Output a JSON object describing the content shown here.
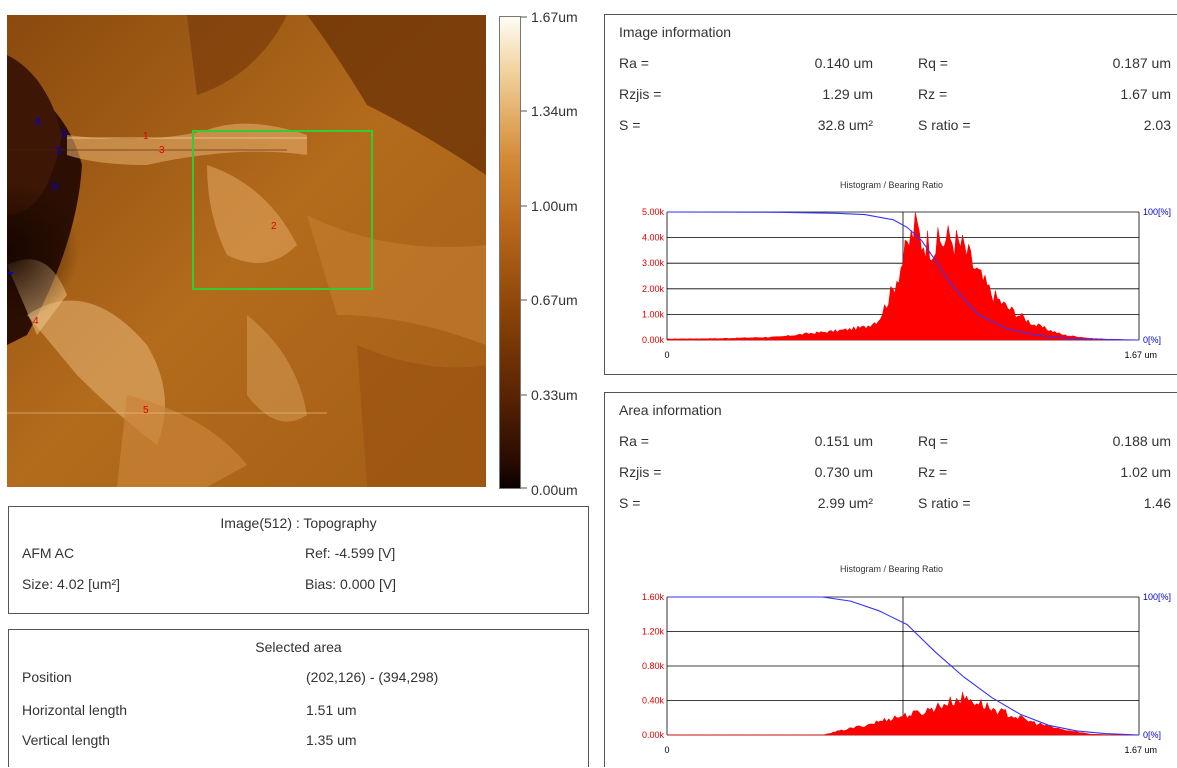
{
  "afm_image": {
    "markers": [
      {
        "label": "1",
        "color": "#e00000"
      },
      {
        "label": "2",
        "color": "#e00000"
      },
      {
        "label": "3",
        "color": "#e00000"
      },
      {
        "label": "4",
        "color": "#e00000"
      },
      {
        "label": "5",
        "color": "#e00000"
      },
      {
        "label": "8",
        "color": "#0000e0"
      },
      {
        "label": "9",
        "color": "#0000e0"
      },
      {
        "label": "5",
        "color": "#0000e0"
      },
      {
        "label": "8",
        "color": "#0000e0"
      }
    ],
    "selection_color": "#33cc33"
  },
  "colorbar": {
    "labels": [
      "1.67um",
      "1.34um",
      "1.00um",
      "0.67um",
      "0.33um",
      "0.00um"
    ]
  },
  "image_panel": {
    "title": "Image(512) : Topography",
    "mode": "AFM AC",
    "ref": "Ref: -4.599 [V]",
    "size": "Size: 4.02 [um²]",
    "bias": "Bias: 0.000 [V]"
  },
  "selected_area": {
    "title": "Selected area",
    "rows": [
      {
        "label": "Position",
        "value": "(202,126) - (394,298)"
      },
      {
        "label": "Horizontal length",
        "value": "1.51 um"
      },
      {
        "label": "Vertical length",
        "value": "1.35 um"
      }
    ]
  },
  "image_info": {
    "title": "Image information",
    "rows": [
      {
        "l1": "Ra =",
        "v1": "0.140 um",
        "l2": "Rq =",
        "v2": "0.187 um"
      },
      {
        "l1": "Rzjis =",
        "v1": "1.29 um",
        "l2": "Rz =",
        "v2": "1.67 um"
      },
      {
        "l1": "S =",
        "v1": "32.8 um²",
        "l2": "S ratio =",
        "v2": "2.03"
      }
    ],
    "histogram_title": "Histogram / Bearing Ratio",
    "y_ticks": [
      "5.00k",
      "4.00k",
      "3.00k",
      "2.00k",
      "1.00k",
      "0.00k"
    ],
    "x_min": "0",
    "x_max": "1.67 um",
    "right_top": "100[%]",
    "right_bottom": "0[%]"
  },
  "area_info": {
    "title": "Area information",
    "rows": [
      {
        "l1": "Ra =",
        "v1": "0.151 um",
        "l2": "Rq =",
        "v2": "0.188 um"
      },
      {
        "l1": "Rzjis =",
        "v1": "0.730 um",
        "l2": "Rz =",
        "v2": "1.02 um"
      },
      {
        "l1": "S =",
        "v1": "2.99 um²",
        "l2": "S ratio =",
        "v2": "1.46"
      }
    ],
    "histogram_title": "Histogram / Bearing Ratio",
    "y_ticks": [
      "1.60k",
      "1.20k",
      "0.80k",
      "0.40k",
      "0.00k"
    ],
    "x_min": "0",
    "x_max": "1.67 um",
    "right_top": "100[%]",
    "right_bottom": "0[%]"
  },
  "chart_data": [
    {
      "type": "area",
      "title": "Histogram / Bearing Ratio",
      "xlim": [
        0,
        1.67
      ],
      "ylim": [
        0,
        5000
      ],
      "series": [
        {
          "values_x": [
            0,
            0.2,
            0.4,
            0.5,
            0.6,
            0.7,
            0.75,
            0.8,
            0.85,
            0.88,
            0.9,
            0.95,
            1.0,
            1.05,
            1.1,
            1.15,
            1.2,
            1.3,
            1.4,
            1.5,
            1.6,
            1.67
          ],
          "values": [
            40,
            60,
            120,
            250,
            350,
            500,
            800,
            2000,
            3600,
            4500,
            3900,
            3700,
            4000,
            3600,
            2600,
            1800,
            1300,
            600,
            200,
            60,
            20,
            0
          ]
        },
        {
          "values_x": [
            0,
            0.4,
            0.6,
            0.7,
            0.8,
            0.85,
            0.9,
            0.95,
            1.0,
            1.05,
            1.1,
            1.2,
            1.3,
            1.4,
            1.5,
            1.67
          ],
          "values": [
            100,
            99.8,
            99,
            98,
            94,
            88,
            78,
            62,
            45,
            32,
            20,
            9,
            4,
            1.5,
            0.5,
            0
          ]
        }
      ]
    },
    {
      "type": "area",
      "title": "Histogram / Bearing Ratio",
      "xlim": [
        0,
        1.67
      ],
      "ylim": [
        0,
        1600
      ],
      "series": [
        {
          "values_x": [
            0,
            0.55,
            0.6,
            0.7,
            0.8,
            0.9,
            1.0,
            1.05,
            1.1,
            1.15,
            1.2,
            1.3,
            1.4,
            1.5,
            1.6,
            1.67
          ],
          "values": [
            0,
            0,
            40,
            110,
            200,
            260,
            380,
            430,
            380,
            300,
            250,
            140,
            60,
            10,
            0,
            0
          ]
        },
        {
          "values_x": [
            0,
            0.4,
            0.55,
            0.65,
            0.75,
            0.85,
            0.95,
            1.05,
            1.15,
            1.25,
            1.35,
            1.45,
            1.55,
            1.67
          ],
          "values": [
            100,
            100,
            100,
            97,
            90,
            80,
            60,
            42,
            27,
            15,
            7,
            3,
            1,
            0
          ]
        }
      ]
    }
  ]
}
